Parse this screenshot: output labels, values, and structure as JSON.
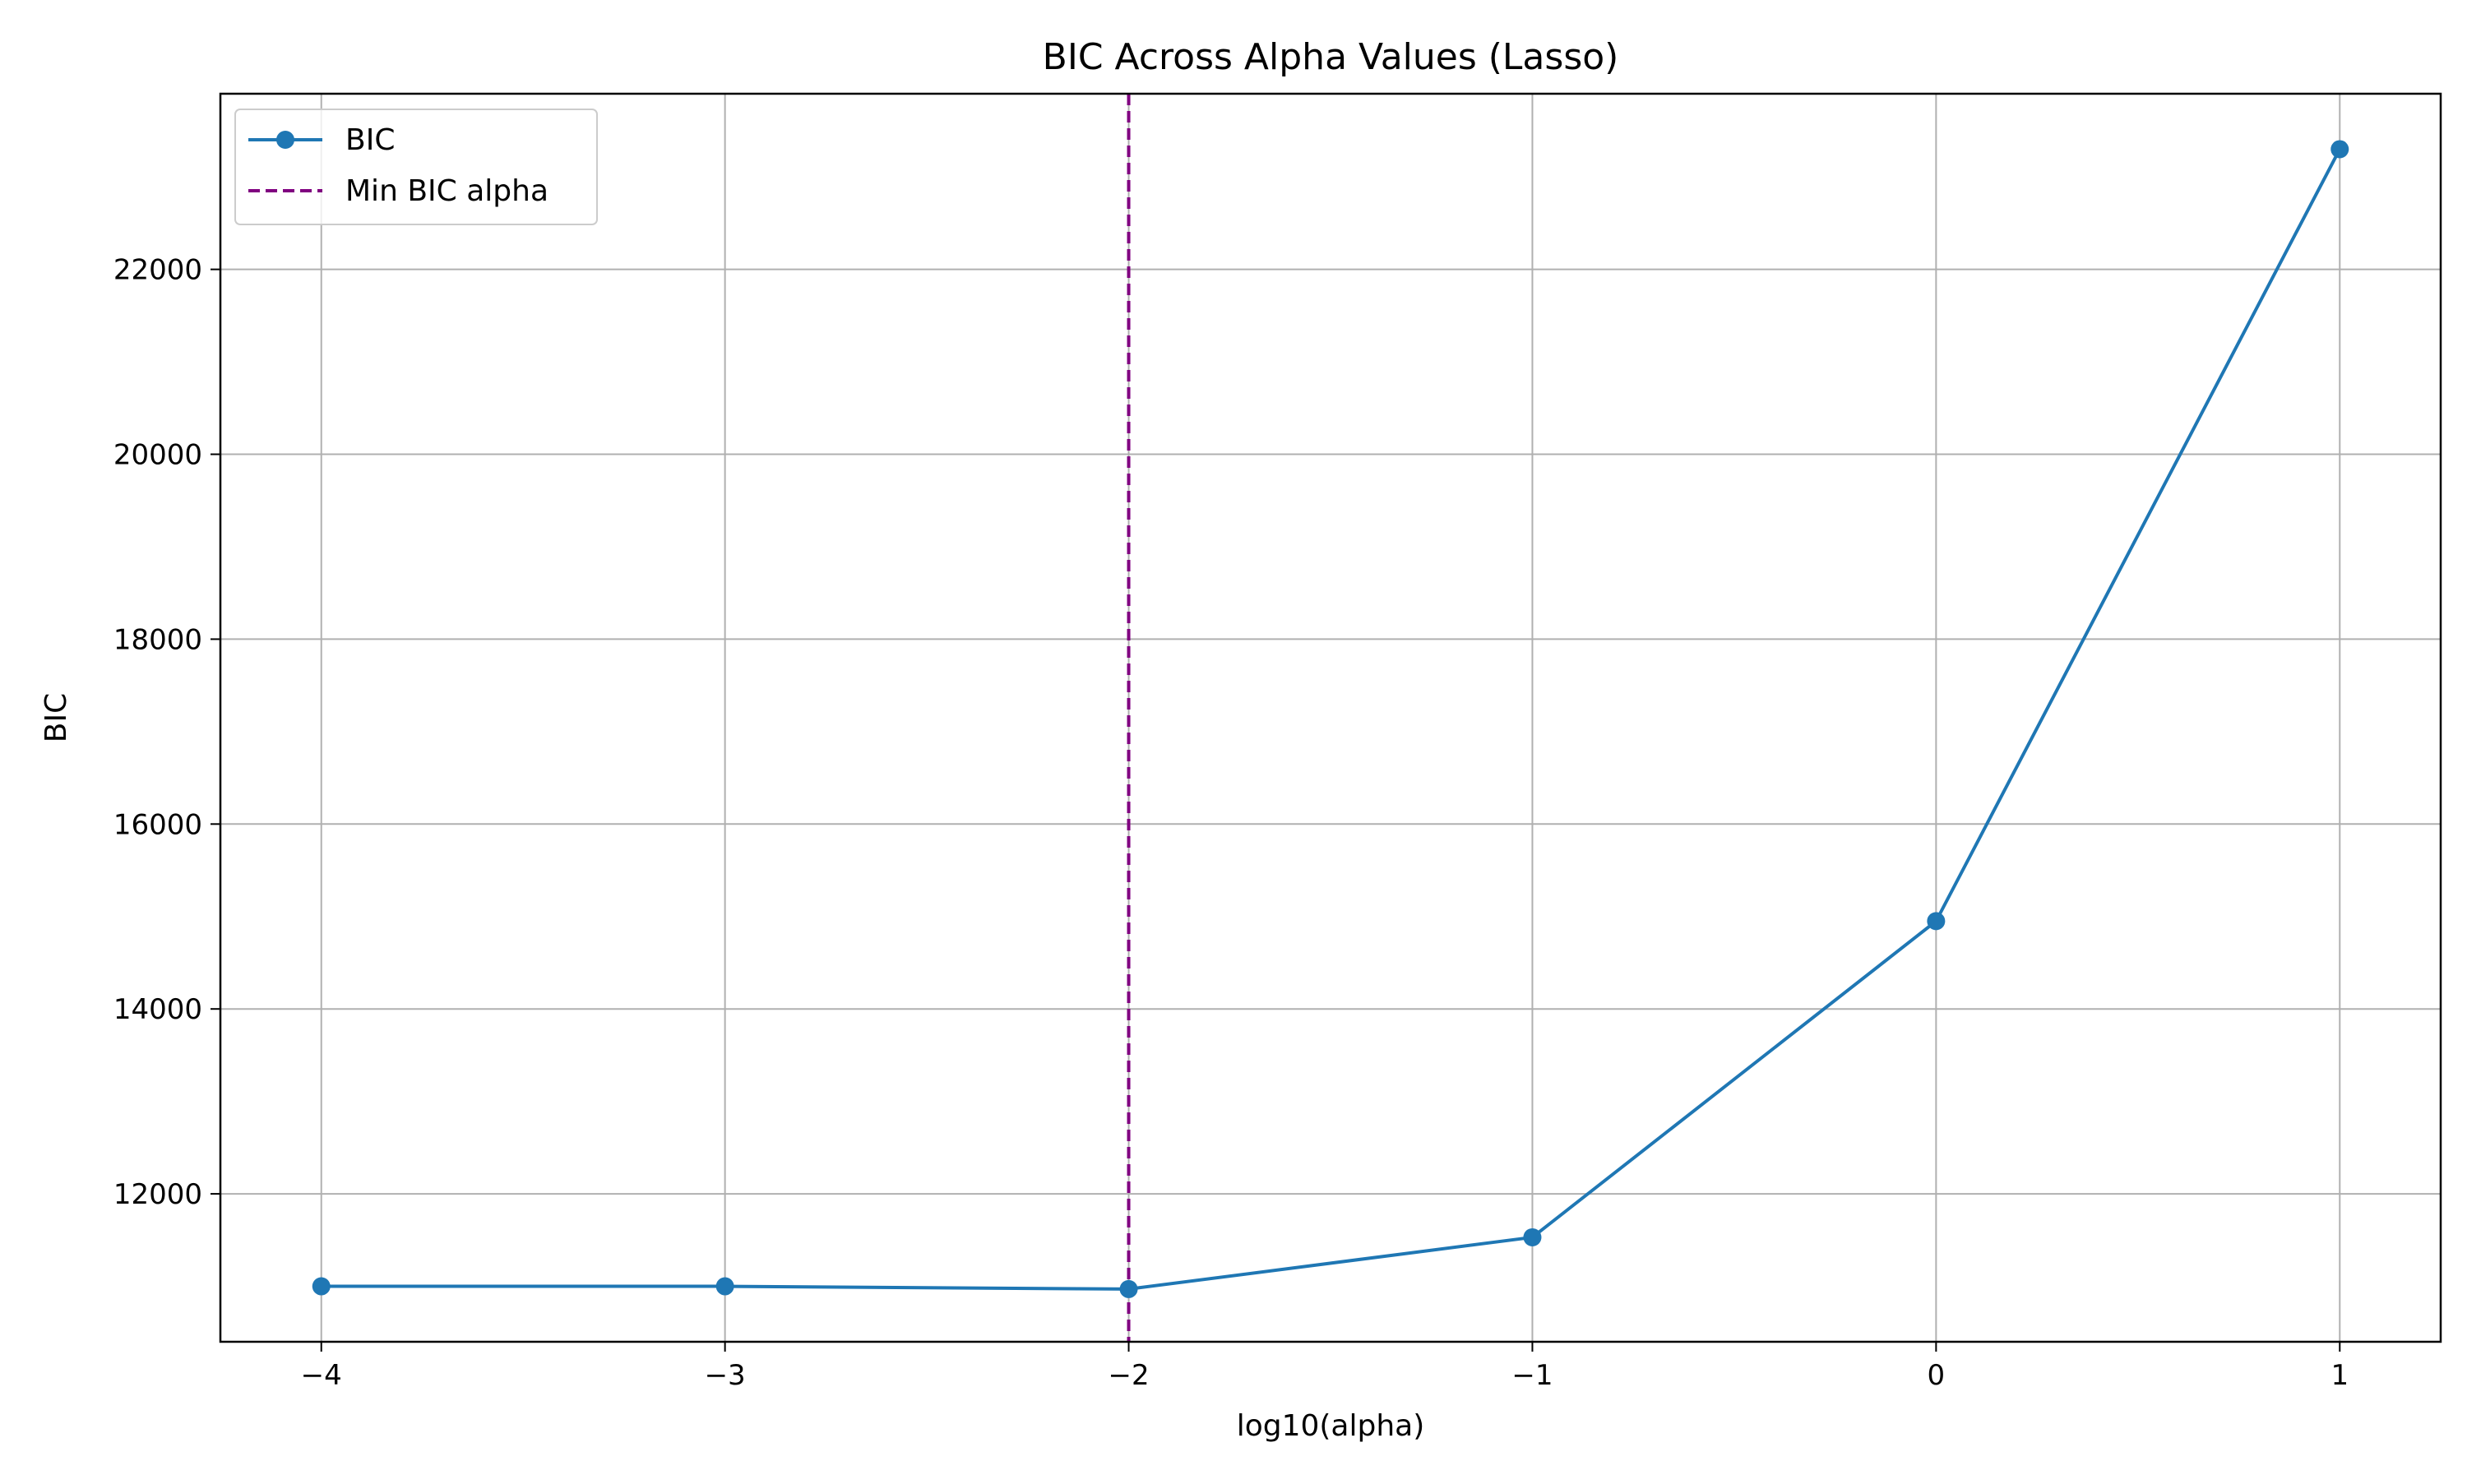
{
  "chart_data": {
    "type": "line",
    "title": "BIC Across Alpha Values (Lasso)",
    "xlabel": "log10(alpha)",
    "ylabel": "BIC",
    "xlim": [
      -4.25,
      1.25
    ],
    "ylim": [
      10400,
      23900
    ],
    "xticks": [
      {
        "value": -4,
        "label": "−4"
      },
      {
        "value": -3,
        "label": "−3"
      },
      {
        "value": -2,
        "label": "−2"
      },
      {
        "value": -1,
        "label": "−1"
      },
      {
        "value": 0,
        "label": "0"
      },
      {
        "value": 1,
        "label": "1"
      }
    ],
    "yticks": [
      {
        "value": 12000,
        "label": "12000"
      },
      {
        "value": 14000,
        "label": "14000"
      },
      {
        "value": 16000,
        "label": "16000"
      },
      {
        "value": 18000,
        "label": "18000"
      },
      {
        "value": 20000,
        "label": "20000"
      },
      {
        "value": 22000,
        "label": "22000"
      }
    ],
    "grid": true,
    "legend_position": "top-left",
    "series": [
      {
        "name": "BIC",
        "color": "#1f77b4",
        "x": [
          -4,
          -3,
          -2,
          -1,
          0,
          1
        ],
        "y": [
          11000,
          11000,
          10970,
          11530,
          14950,
          23300
        ]
      }
    ],
    "reference_lines": [
      {
        "name": "Min BIC alpha",
        "orientation": "vertical",
        "x": -2,
        "color": "#800080",
        "style": "dashed"
      }
    ]
  }
}
